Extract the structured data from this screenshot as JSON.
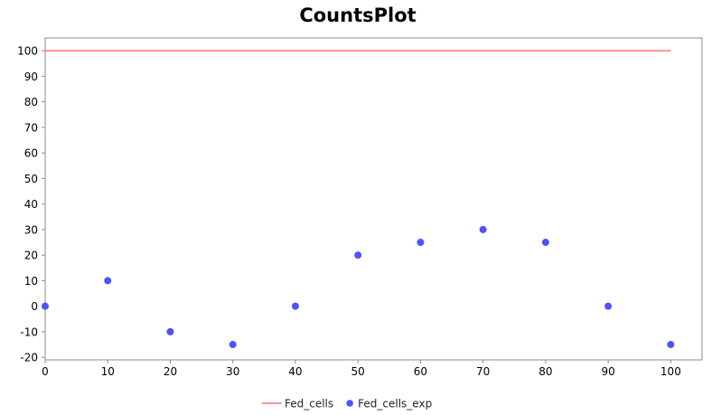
{
  "chart_data": {
    "type": "line",
    "title": "CountsPlot",
    "xlabel": "",
    "ylabel": "",
    "xlim": [
      0,
      105
    ],
    "ylim": [
      -21,
      105
    ],
    "x_ticks": [
      0,
      10,
      20,
      30,
      40,
      50,
      60,
      70,
      80,
      90,
      100
    ],
    "y_ticks": [
      -20,
      -10,
      0,
      10,
      20,
      30,
      40,
      50,
      60,
      70,
      80,
      90,
      100
    ],
    "grid": false,
    "legend_position": "bottom",
    "series": [
      {
        "name": "Fed_cells",
        "kind": "line",
        "color": "#ff5a5a",
        "x": [
          0,
          100
        ],
        "y": [
          100,
          100
        ]
      },
      {
        "name": "Fed_cells_exp",
        "kind": "scatter",
        "color": "#5050ff",
        "x": [
          0,
          10,
          20,
          30,
          40,
          50,
          60,
          70,
          80,
          90,
          100
        ],
        "y": [
          0,
          10,
          -10,
          -15,
          0,
          20,
          25,
          30,
          25,
          0,
          -15
        ]
      }
    ]
  }
}
